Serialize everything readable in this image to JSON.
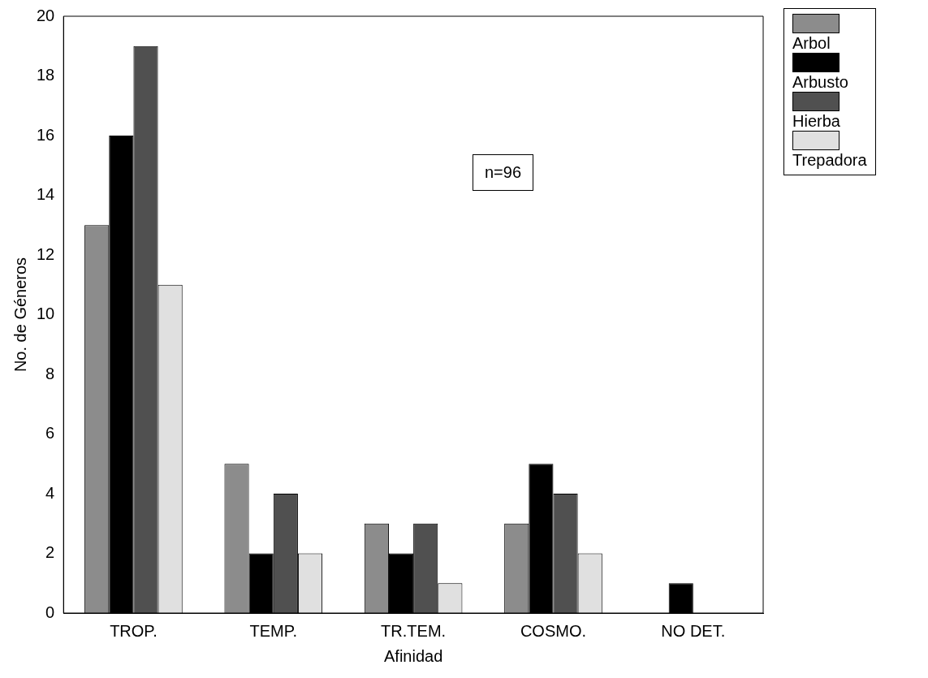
{
  "chart_data": {
    "type": "bar",
    "xlabel": "Afinidad",
    "ylabel": "No. de Géneros",
    "categories": [
      "TROP.",
      "TEMP.",
      "TR.TEM.",
      "COSMO.",
      "NO DET."
    ],
    "series": [
      {
        "name": "Arbol",
        "color": "#8c8c8c",
        "values": [
          13,
          5,
          3,
          3,
          0
        ]
      },
      {
        "name": "Arbusto",
        "color": "#000000",
        "values": [
          16,
          2,
          2,
          5,
          1
        ]
      },
      {
        "name": "Hierba",
        "color": "#505050",
        "values": [
          19,
          4,
          3,
          4,
          0
        ]
      },
      {
        "name": "Trepadora",
        "color": "#e0e0e0",
        "values": [
          11,
          2,
          1,
          2,
          0
        ]
      }
    ],
    "ylim": [
      0,
      20
    ],
    "yticks": [
      0,
      2,
      4,
      6,
      8,
      10,
      12,
      14,
      16,
      18,
      20
    ],
    "grid": false,
    "legend": "top right",
    "annotations": [
      "n=96"
    ]
  }
}
